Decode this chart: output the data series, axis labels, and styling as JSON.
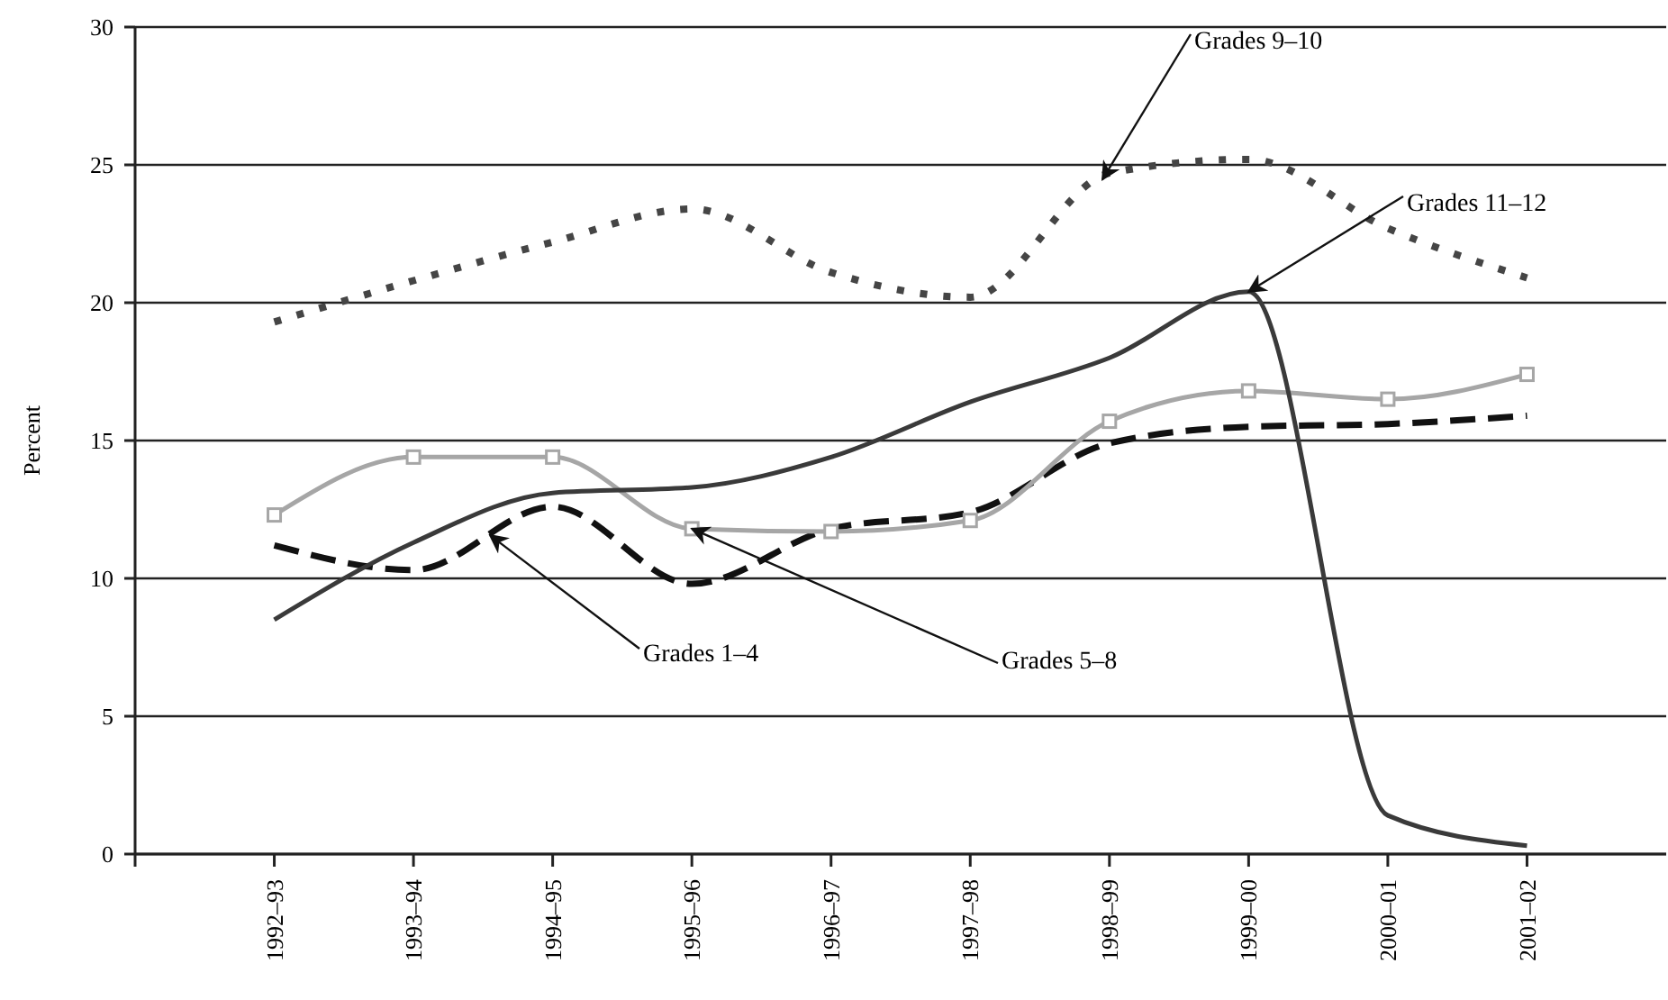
{
  "chart_data": {
    "type": "line",
    "ylabel": "Percent",
    "categories": [
      "1992–93",
      "1993–94",
      "1994–95",
      "1995–96",
      "1996–97",
      "1997–98",
      "1998–99",
      "1999–00",
      "2000–01",
      "2001–02"
    ],
    "series": [
      {
        "name": "Grades 1–4",
        "color": "#111111",
        "line_style": "dashed",
        "marker": "none",
        "values": [
          11.2,
          10.3,
          12.6,
          9.8,
          11.8,
          12.4,
          14.9,
          15.5,
          15.6,
          15.9
        ]
      },
      {
        "name": "Grades 5–8",
        "color": "#a6a6a6",
        "line_style": "solid",
        "marker": "square",
        "values": [
          12.3,
          14.4,
          14.4,
          11.8,
          11.7,
          12.1,
          15.7,
          16.8,
          16.5,
          17.4
        ]
      },
      {
        "name": "Grades 9–10",
        "color": "#454545",
        "line_style": "dotted",
        "marker": "none",
        "values": [
          19.3,
          20.8,
          22.2,
          23.4,
          21.1,
          20.2,
          24.7,
          25.2,
          22.7,
          20.9
        ]
      },
      {
        "name": "Grades 11–12",
        "color": "#3a3a3a",
        "line_style": "solid",
        "marker": "none",
        "values": [
          8.5,
          11.3,
          13.1,
          13.3,
          14.4,
          16.4,
          18.0,
          20.4,
          1.4,
          0.3
        ]
      }
    ],
    "ylim": [
      0,
      30
    ],
    "yticks": [
      0,
      5,
      10,
      15,
      20,
      25,
      30
    ],
    "grid": "y"
  }
}
